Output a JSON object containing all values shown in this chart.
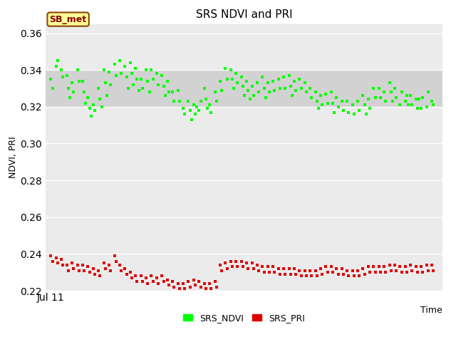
{
  "title": "SRS NDVI and PRI",
  "xlabel": "Time",
  "ylabel": "NDVI, PRI",
  "ylim": [
    0.22,
    0.365
  ],
  "yticks": [
    0.22,
    0.24,
    0.26,
    0.28,
    0.3,
    0.32,
    0.34,
    0.36
  ],
  "annotation_text": "SB_met",
  "ndvi_color": "#00FF00",
  "pri_color": "#DD0000",
  "fig_bg": "#FFFFFF",
  "plot_bg": "#EBEBEB",
  "band_color": "#D0D0D0",
  "band_alpha": 0.9,
  "ndvi_band_min": 0.32,
  "ndvi_band_max": 0.34,
  "ndvi_x": [
    1,
    1.3,
    2,
    2.3,
    3,
    3.3,
    4,
    4.3,
    4.6,
    5,
    5.3,
    6,
    6.3,
    7,
    7.3,
    7.6,
    8,
    8.3,
    8.6,
    9,
    9.3,
    10,
    10.3,
    10.6,
    11,
    11.3,
    11.6,
    12,
    12.3,
    13,
    13.3,
    14,
    14.3,
    15,
    15.3,
    15.6,
    16,
    16.3,
    16.6,
    17,
    17.3,
    17.6,
    18,
    18.3,
    19,
    19.3,
    19.6,
    20,
    20.3,
    21,
    21.3,
    22,
    22.3,
    22.6,
    23,
    23.3,
    24,
    24.3,
    25,
    25.3,
    26,
    26.3,
    27,
    27.3,
    27.6,
    28,
    28.3,
    28.6,
    29,
    29.3,
    30,
    30.3,
    30.6,
    31,
    31.3,
    32,
    32.3,
    33,
    33.3,
    34,
    34.3,
    35,
    35.3,
    35.6,
    36,
    36.3,
    37,
    37.3,
    37.6,
    38,
    38.3,
    38.6,
    39,
    39.3,
    40,
    40.3,
    41,
    41.3,
    41.6,
    42,
    42.3,
    43,
    43.3,
    44,
    44.3,
    45,
    45.3,
    46,
    46.3,
    46.6,
    47,
    47.3,
    48,
    48.3,
    49,
    49.3,
    50,
    50.3,
    51,
    51.3,
    51.6,
    52,
    52.3,
    53,
    53.3,
    54,
    54.3,
    54.6,
    55,
    55.3,
    56,
    56.3,
    57,
    57.3,
    58,
    58.3,
    59,
    59.3,
    60,
    60.3,
    60.6,
    61,
    61.3,
    62,
    62.3,
    63,
    63.3,
    64,
    64.3,
    65,
    65.3,
    65.6,
    66,
    66.3,
    67,
    67.3,
    68,
    68.3,
    68.6,
    69,
    69.3,
    70,
    70.3,
    70.6,
    71,
    71.3,
    72,
    72.3,
    73,
    73.3
  ],
  "ndvi_y": [
    0.335,
    0.33,
    0.342,
    0.345,
    0.34,
    0.336,
    0.337,
    0.33,
    0.325,
    0.333,
    0.328,
    0.34,
    0.334,
    0.334,
    0.328,
    0.322,
    0.325,
    0.319,
    0.315,
    0.321,
    0.318,
    0.33,
    0.324,
    0.32,
    0.34,
    0.333,
    0.326,
    0.339,
    0.332,
    0.343,
    0.337,
    0.345,
    0.338,
    0.342,
    0.336,
    0.33,
    0.344,
    0.338,
    0.332,
    0.341,
    0.335,
    0.329,
    0.335,
    0.33,
    0.34,
    0.334,
    0.328,
    0.34,
    0.335,
    0.338,
    0.332,
    0.337,
    0.331,
    0.326,
    0.334,
    0.328,
    0.328,
    0.323,
    0.329,
    0.323,
    0.319,
    0.316,
    0.323,
    0.318,
    0.313,
    0.321,
    0.316,
    0.32,
    0.318,
    0.323,
    0.33,
    0.324,
    0.319,
    0.321,
    0.317,
    0.328,
    0.323,
    0.334,
    0.329,
    0.341,
    0.335,
    0.34,
    0.335,
    0.33,
    0.338,
    0.333,
    0.336,
    0.331,
    0.326,
    0.334,
    0.329,
    0.324,
    0.331,
    0.326,
    0.333,
    0.328,
    0.336,
    0.33,
    0.325,
    0.333,
    0.328,
    0.334,
    0.329,
    0.335,
    0.33,
    0.336,
    0.33,
    0.337,
    0.331,
    0.326,
    0.334,
    0.329,
    0.335,
    0.33,
    0.333,
    0.328,
    0.33,
    0.325,
    0.328,
    0.323,
    0.319,
    0.326,
    0.321,
    0.327,
    0.322,
    0.328,
    0.322,
    0.317,
    0.325,
    0.32,
    0.323,
    0.318,
    0.323,
    0.317,
    0.321,
    0.316,
    0.323,
    0.318,
    0.326,
    0.321,
    0.316,
    0.324,
    0.319,
    0.33,
    0.325,
    0.33,
    0.325,
    0.328,
    0.323,
    0.333,
    0.328,
    0.323,
    0.33,
    0.325,
    0.321,
    0.328,
    0.323,
    0.326,
    0.321,
    0.326,
    0.321,
    0.324,
    0.319,
    0.324,
    0.319,
    0.325,
    0.32,
    0.328,
    0.323,
    0.321
  ],
  "pri_x": [
    1,
    1.3,
    2,
    2.3,
    3,
    3.3,
    4,
    4.3,
    5,
    5.3,
    6,
    6.3,
    7,
    7.3,
    8,
    8.3,
    9,
    9.3,
    10,
    10.3,
    11,
    11.3,
    12,
    12.3,
    13,
    13.3,
    14,
    14.3,
    15,
    15.3,
    16,
    16.3,
    17,
    17.3,
    18,
    18.3,
    19,
    19.3,
    20,
    20.3,
    21,
    21.3,
    22,
    22.3,
    23,
    23.3,
    24,
    24.3,
    25,
    25.3,
    26,
    26.3,
    27,
    27.3,
    28,
    28.3,
    29,
    29.3,
    30,
    30.3,
    31,
    31.3,
    32,
    32.3,
    33,
    33.3,
    34,
    34.3,
    35,
    35.3,
    36,
    36.3,
    37,
    37.3,
    38,
    38.3,
    39,
    39.3,
    40,
    40.3,
    41,
    41.3,
    42,
    42.3,
    43,
    43.3,
    44,
    44.3,
    45,
    45.3,
    46,
    46.3,
    47,
    47.3,
    48,
    48.3,
    49,
    49.3,
    50,
    50.3,
    51,
    51.3,
    52,
    52.3,
    53,
    53.3,
    54,
    54.3,
    55,
    55.3,
    56,
    56.3,
    57,
    57.3,
    58,
    58.3,
    59,
    59.3,
    60,
    60.3,
    61,
    61.3,
    62,
    62.3,
    63,
    63.3,
    64,
    64.3,
    65,
    65.3,
    66,
    66.3,
    67,
    67.3,
    68,
    68.3,
    69,
    69.3,
    70,
    70.3,
    71,
    71.3,
    72,
    72.3,
    73,
    73.3
  ],
  "pri_y": [
    0.239,
    0.236,
    0.238,
    0.235,
    0.237,
    0.234,
    0.234,
    0.231,
    0.235,
    0.232,
    0.234,
    0.231,
    0.234,
    0.231,
    0.233,
    0.23,
    0.232,
    0.229,
    0.231,
    0.228,
    0.235,
    0.232,
    0.234,
    0.231,
    0.239,
    0.236,
    0.234,
    0.231,
    0.232,
    0.229,
    0.23,
    0.227,
    0.228,
    0.225,
    0.228,
    0.225,
    0.227,
    0.224,
    0.228,
    0.225,
    0.227,
    0.224,
    0.228,
    0.225,
    0.226,
    0.223,
    0.225,
    0.222,
    0.224,
    0.221,
    0.224,
    0.221,
    0.225,
    0.222,
    0.226,
    0.223,
    0.225,
    0.222,
    0.224,
    0.221,
    0.224,
    0.221,
    0.225,
    0.222,
    0.234,
    0.231,
    0.235,
    0.232,
    0.236,
    0.233,
    0.236,
    0.233,
    0.236,
    0.233,
    0.235,
    0.232,
    0.235,
    0.232,
    0.234,
    0.231,
    0.233,
    0.23,
    0.233,
    0.23,
    0.233,
    0.23,
    0.232,
    0.229,
    0.232,
    0.229,
    0.232,
    0.229,
    0.232,
    0.229,
    0.231,
    0.228,
    0.231,
    0.228,
    0.231,
    0.228,
    0.231,
    0.228,
    0.232,
    0.229,
    0.233,
    0.23,
    0.233,
    0.23,
    0.232,
    0.229,
    0.232,
    0.229,
    0.231,
    0.228,
    0.231,
    0.228,
    0.231,
    0.228,
    0.232,
    0.229,
    0.233,
    0.23,
    0.233,
    0.23,
    0.233,
    0.23,
    0.233,
    0.23,
    0.234,
    0.231,
    0.234,
    0.231,
    0.233,
    0.23,
    0.233,
    0.23,
    0.234,
    0.231,
    0.233,
    0.23,
    0.233,
    0.23,
    0.234,
    0.231,
    0.234,
    0.231
  ]
}
